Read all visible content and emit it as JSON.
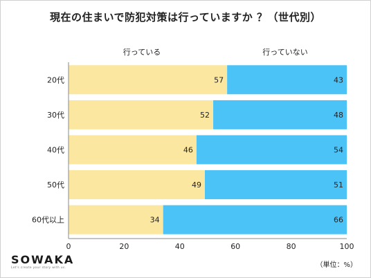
{
  "chart_data": {
    "type": "bar",
    "orientation": "horizontal",
    "stacked": true,
    "title": "現在の住まいで防犯対策は行っていますか ？（世代別）",
    "categories": [
      "20代",
      "30代",
      "40代",
      "50代",
      "60代以上"
    ],
    "series": [
      {
        "name": "行っている",
        "values": [
          57,
          52,
          46,
          49,
          34
        ],
        "color": "#FBE79F"
      },
      {
        "name": "行っていない",
        "values": [
          43,
          48,
          54,
          51,
          66
        ],
        "color": "#4BC3F7"
      }
    ],
    "xlim": [
      0,
      100
    ],
    "xticks": [
      "0",
      "20",
      "40",
      "60",
      "80",
      "100"
    ],
    "grid": false,
    "legend": "top"
  },
  "brand": {
    "logo": "SOWAKA",
    "tagline": "Let's create your story with us."
  },
  "unit_note": "（単位：%）"
}
